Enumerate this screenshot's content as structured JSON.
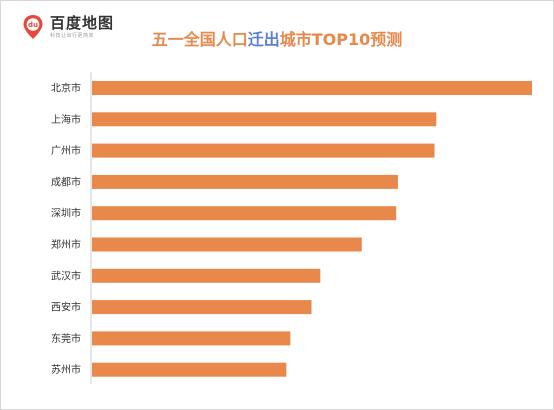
{
  "brand": {
    "name": "百度地图",
    "slogan": "科技让出行更简单",
    "icon": "baidu-map-pin-icon",
    "icon_text": "du"
  },
  "title": {
    "part1": "五一全国人口",
    "part2": "迁出",
    "part3": "城市TOP10预测"
  },
  "colors": {
    "bar": "#e8884a",
    "title_primary": "#e8884a",
    "title_highlight": "#5b7fd8",
    "axis": "#cfcfcf",
    "logo_red": "#e8473c"
  },
  "chart_data": {
    "type": "bar",
    "orientation": "horizontal",
    "title": "五一全国人口迁出城市TOP10预测",
    "categories": [
      "北京市",
      "上海市",
      "广州市",
      "成都市",
      "深圳市",
      "郑州市",
      "武汉市",
      "西安市",
      "东莞市",
      "苏州市"
    ],
    "values": [
      100,
      78.3,
      77.9,
      69.6,
      69.2,
      61.4,
      52.0,
      50.0,
      45.2,
      44.3
    ],
    "xlim": [
      0,
      100
    ],
    "x_axis_visible": false,
    "grid": false,
    "legend": "none"
  }
}
